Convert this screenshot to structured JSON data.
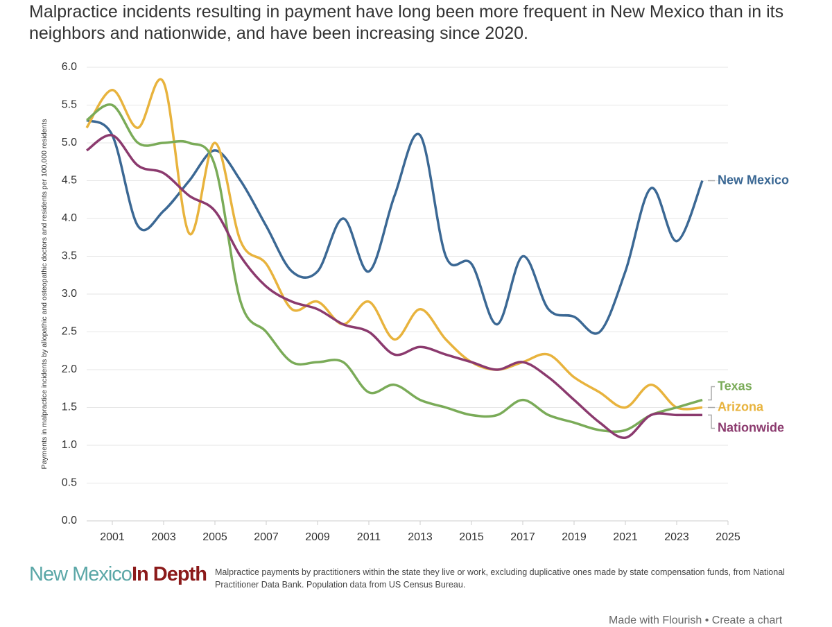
{
  "chart_data": {
    "type": "line",
    "title": "Malpractice incidents resulting in payment have long been more frequent in New Mexico than in its neighbors and nationwide, and have been increasing since 2020.",
    "y_label": "Payments in malpractice incidents by allopathic and osteopathic doctors and residents  per 100,000 residents",
    "x": [
      2000,
      2001,
      2002,
      2003,
      2004,
      2005,
      2006,
      2007,
      2008,
      2009,
      2010,
      2011,
      2012,
      2013,
      2014,
      2015,
      2016,
      2017,
      2018,
      2019,
      2020,
      2021,
      2022,
      2023,
      2024
    ],
    "xlim": [
      2000,
      2025
    ],
    "xticks": [
      2001,
      2003,
      2005,
      2007,
      2009,
      2011,
      2013,
      2015,
      2017,
      2019,
      2021,
      2023,
      2025
    ],
    "ylim": [
      0,
      6
    ],
    "yticks": [
      {
        "value": 0,
        "label": "0.0"
      },
      {
        "value": 0.5,
        "label": "0.5"
      },
      {
        "value": 1,
        "label": "1.0"
      },
      {
        "value": 1.5,
        "label": "1.5"
      },
      {
        "value": 2,
        "label": "2.0"
      },
      {
        "value": 2.5,
        "label": "2.5"
      },
      {
        "value": 3,
        "label": "3.0"
      },
      {
        "value": 3.5,
        "label": "3.5"
      },
      {
        "value": 4,
        "label": "4.0"
      },
      {
        "value": 4.5,
        "label": "4.5"
      },
      {
        "value": 5,
        "label": "5.0"
      },
      {
        "value": 5.5,
        "label": "5.5"
      },
      {
        "value": 6,
        "label": "6.0"
      }
    ],
    "grid": true,
    "series": [
      {
        "name": "New Mexico",
        "color": "#3b6894",
        "values": [
          5.3,
          5.1,
          3.9,
          4.1,
          4.5,
          4.9,
          4.5,
          3.9,
          3.3,
          3.3,
          4.0,
          3.3,
          4.3,
          5.1,
          3.5,
          3.4,
          2.6,
          3.5,
          2.8,
          2.7,
          2.5,
          3.3,
          4.4,
          3.7,
          4.5
        ]
      },
      {
        "name": "Arizona",
        "color": "#e8b33d",
        "values": [
          5.2,
          5.7,
          5.2,
          5.8,
          3.8,
          5.0,
          3.7,
          3.4,
          2.8,
          2.9,
          2.6,
          2.9,
          2.4,
          2.8,
          2.4,
          2.1,
          2.0,
          2.1,
          2.2,
          1.9,
          1.7,
          1.5,
          1.8,
          1.5,
          1.5
        ]
      },
      {
        "name": "Texas",
        "color": "#7aab58",
        "values": [
          5.3,
          5.5,
          5.0,
          5.0,
          5.0,
          4.7,
          2.9,
          2.5,
          2.1,
          2.1,
          2.1,
          1.7,
          1.8,
          1.6,
          1.5,
          1.4,
          1.4,
          1.6,
          1.4,
          1.3,
          1.2,
          1.2,
          1.4,
          1.5,
          1.6
        ]
      },
      {
        "name": "Nationwide",
        "color": "#8b3a6e",
        "values": [
          4.9,
          5.1,
          4.7,
          4.6,
          4.3,
          4.1,
          3.5,
          3.1,
          2.9,
          2.8,
          2.6,
          2.5,
          2.2,
          2.3,
          2.2,
          2.1,
          2.0,
          2.1,
          1.9,
          1.6,
          1.3,
          1.1,
          1.4,
          1.4,
          1.4
        ]
      }
    ],
    "logo": {
      "left": "New Mexico",
      "right": "In Depth"
    },
    "source": "Malpractice payments by practitioners within the state they live or work, excluding duplicative ones made by state compensation funds, from National Practitioner Data Bank. Population data from US Census Bureau.",
    "footer": "Made with Flourish • Create a chart"
  }
}
